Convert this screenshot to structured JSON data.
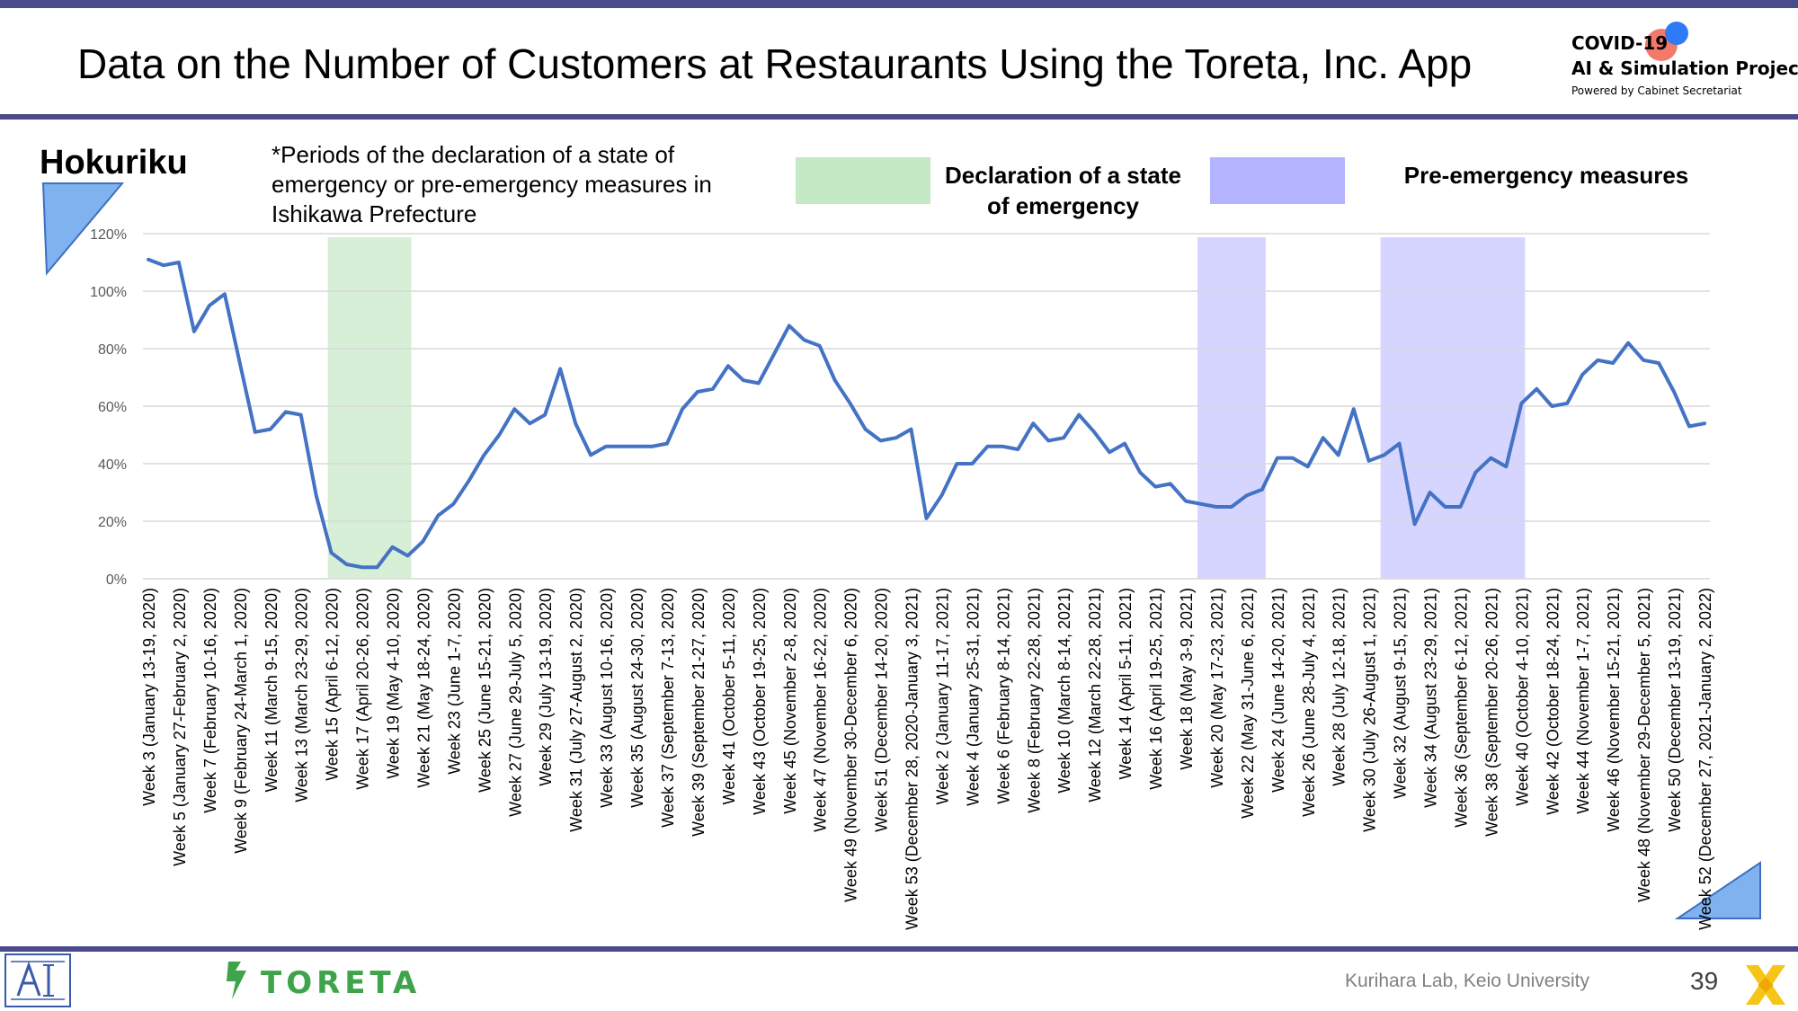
{
  "header": {
    "title": "Data on the Number of Customers at Restaurants Using the Toreta, Inc. App",
    "logo_line1": "COVID-19",
    "logo_line2": "AI & Simulation Project",
    "logo_line3": "Powered by Cabinet Secretariat"
  },
  "region": "Hokuriku",
  "note": "*Periods of the declaration of a state of emergency or pre-emergency measures in Ishikawa Prefecture",
  "legend": {
    "emergency_label": "Declaration of a state of emergency",
    "emergency_color": "#c5e8c5",
    "pre_emergency_label": "Pre-emergency measures",
    "pre_emergency_color": "#b3b3ff"
  },
  "footer": {
    "toreta_logo": "TORETA",
    "credit": "Kurihara Lab, Keio University",
    "page_number": "39"
  },
  "chart_data": {
    "type": "line",
    "line_color": "#4472c4",
    "y_ticks": [
      "0%",
      "20%",
      "40%",
      "60%",
      "80%",
      "100%",
      "120%"
    ],
    "ylim": [
      0,
      120
    ],
    "grid": true,
    "x_labels": [
      "Week 3 (January 13-19, 2020)",
      "Week 5 (January 27-February 2, 2020)",
      "Week 7 (February 10-16, 2020)",
      "Week 9 (February 24-March 1, 2020)",
      "Week 11 (March 9-15, 2020)",
      "Week 13 (March 23-29, 2020)",
      "Week 15 (April 6-12, 2020)",
      "Week 17 (April 20-26, 2020)",
      "Week 19 (May 4-10, 2020)",
      "Week 21 (May 18-24, 2020)",
      "Week 23 (June 1-7, 2020)",
      "Week 25 (June 15-21, 2020)",
      "Week 27 (June 29-July 5, 2020)",
      "Week 29 (July 13-19, 2020)",
      "Week 31 (July 27-August 2, 2020)",
      "Week 33 (August 10-16, 2020)",
      "Week 35 (August 24-30, 2020)",
      "Week 37 (September 7-13, 2020)",
      "Week 39 (September 21-27, 2020)",
      "Week 41 (October 5-11, 2020)",
      "Week 43 (October 19-25, 2020)",
      "Week 45 (November 2-8, 2020)",
      "Week 47 (November 16-22, 2020)",
      "Week 49 (November 30-December 6, 2020)",
      "Week 51 (December 14-20, 2020)",
      "Week 53 (December 28, 2020-January 3, 2021)",
      "Week 2 (January 11-17, 2021)",
      "Week 4 (January 25-31, 2021)",
      "Week 6 (February 8-14, 2021)",
      "Week 8 (February 22-28, 2021)",
      "Week 10 (March 8-14, 2021)",
      "Week 12 (March 22-28, 2021)",
      "Week 14 (April 5-11, 2021)",
      "Week 16 (April 19-25, 2021)",
      "Week 18 (May 3-9, 2021)",
      "Week 20 (May 17-23, 2021)",
      "Week 22 (May 31-June 6, 2021)",
      "Week 24 (June 14-20, 2021)",
      "Week 26 (June 28-July 4, 2021)",
      "Week 28 (July 12-18, 2021)",
      "Week 30 (July 26-August 1, 2021)",
      "Week 32 (August 9-15, 2021)",
      "Week 34 (August 23-29, 2021)",
      "Week 36 (September 6-12, 2021)",
      "Week 38 (September 20-26, 2021)",
      "Week 40 (October 4-10, 2021)",
      "Week 42 (October 18-24, 2021)",
      "Week 44 (November 1-7, 2021)",
      "Week 46 (November 15-21, 2021)",
      "Week 48 (November 29-December 5, 2021)",
      "Week 50 (December 13-19, 2021)",
      "Week 52 (December 27, 2021-January 2, 2022)"
    ],
    "values": [
      111,
      109,
      110,
      86,
      95,
      99,
      75,
      51,
      52,
      58,
      57,
      29,
      9,
      5,
      4,
      4,
      11,
      8,
      13,
      22,
      26,
      34,
      43,
      50,
      59,
      54,
      57,
      73,
      54,
      43,
      46,
      46,
      46,
      46,
      47,
      59,
      65,
      66,
      74,
      69,
      68,
      78,
      88,
      83,
      81,
      69,
      61,
      52,
      48,
      49,
      52,
      21,
      29,
      40,
      40,
      46,
      46,
      45,
      54,
      48,
      49,
      57,
      51,
      44,
      47,
      37,
      32,
      33,
      27,
      26,
      25,
      25,
      29,
      31,
      42,
      42,
      39,
      49,
      43,
      59,
      41,
      43,
      47,
      19,
      30,
      25,
      25,
      37,
      42,
      39,
      61,
      66,
      60,
      61,
      71,
      76,
      75,
      82,
      76,
      75,
      65,
      53,
      54
    ],
    "bands": [
      {
        "kind": "emergency",
        "start_index": 12,
        "end_index": 17
      },
      {
        "kind": "pre_emergency",
        "start_index": 69,
        "end_index": 73
      },
      {
        "kind": "pre_emergency",
        "start_index": 81,
        "end_index": 90
      }
    ]
  }
}
